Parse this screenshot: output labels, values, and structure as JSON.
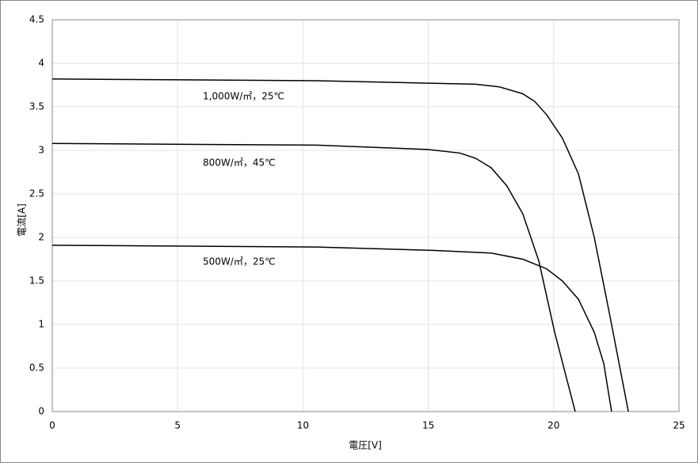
{
  "chart_data": {
    "type": "line",
    "x_label": "電圧[V]",
    "y_label": "電流[A]",
    "xlim": [
      0,
      25
    ],
    "xticks": [
      0,
      5,
      10,
      15,
      20,
      25
    ],
    "ylim": [
      0,
      4.5
    ],
    "yticks": [
      0,
      0.5,
      1,
      1.5,
      2,
      2.5,
      3,
      3.5,
      4,
      4.5
    ],
    "grid": true,
    "series": [
      {
        "name": "1,000W/㎡，25℃",
        "color": "#000000",
        "x": [
          0,
          10.56,
          16.88,
          17.83,
          18.77,
          19.25,
          19.72,
          20.35,
          20.99,
          21.62,
          22.25,
          22.98
        ],
        "values": [
          3.82,
          3.8,
          3.76,
          3.73,
          3.65,
          3.56,
          3.41,
          3.14,
          2.73,
          2.0,
          1.09,
          0
        ]
      },
      {
        "name": "800W/㎡，45℃",
        "color": "#000000",
        "x": [
          0,
          10.56,
          14.98,
          16.25,
          16.88,
          17.51,
          18.14,
          18.77,
          19.41,
          20.04,
          20.86
        ],
        "values": [
          3.08,
          3.06,
          3.01,
          2.97,
          2.91,
          2.8,
          2.59,
          2.27,
          1.73,
          0.91,
          0
        ]
      },
      {
        "name": "500W/㎡，25℃",
        "color": "#000000",
        "x": [
          0,
          10.56,
          15.3,
          17.51,
          18.77,
          19.72,
          20.35,
          20.99,
          21.62,
          22.0,
          22.31
        ],
        "values": [
          1.91,
          1.89,
          1.85,
          1.82,
          1.75,
          1.64,
          1.5,
          1.29,
          0.91,
          0.55,
          0
        ]
      }
    ]
  }
}
